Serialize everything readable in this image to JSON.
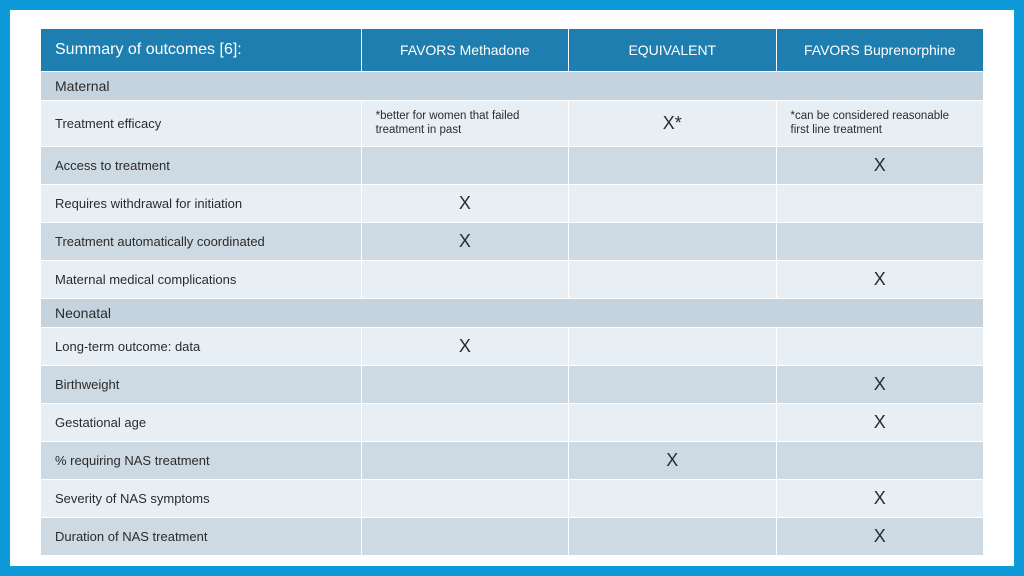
{
  "colors": {
    "page_border": "#0d9ad8",
    "stage_bg": "#ffffff",
    "header_bg": "#1e7eb0",
    "header_text": "#ffffff",
    "section_bg": "#c4d3dd",
    "row_odd_bg": "#e8eff4",
    "row_even_bg": "#cedae3",
    "cell_border": "#ffffff",
    "body_text": "#2b2b2b"
  },
  "table": {
    "columns": {
      "title": "Summary of outcomes [6]:",
      "col1": "FAVORS Methadone",
      "col2": "EQUIVALENT",
      "col3": "FAVORS Buprenorphine"
    },
    "sections": [
      {
        "label": "Maternal",
        "rows": [
          {
            "label": "Treatment efficacy",
            "c1": {
              "type": "note",
              "text": "*better for women that failed treatment in past"
            },
            "c2": {
              "type": "mark",
              "text": "X*"
            },
            "c3": {
              "type": "note",
              "text": "*can be considered reasonable first line treatment"
            }
          },
          {
            "label": "Access to treatment",
            "c1": null,
            "c2": null,
            "c3": {
              "type": "mark",
              "text": "X"
            }
          },
          {
            "label": "Requires withdrawal for initiation",
            "c1": {
              "type": "mark",
              "text": "X"
            },
            "c2": null,
            "c3": null
          },
          {
            "label": "Treatment automatically coordinated",
            "c1": {
              "type": "mark",
              "text": "X"
            },
            "c2": null,
            "c3": null
          },
          {
            "label": "Maternal medical complications",
            "c1": null,
            "c2": null,
            "c3": {
              "type": "mark",
              "text": "X"
            }
          }
        ]
      },
      {
        "label": "Neonatal",
        "rows": [
          {
            "label": "Long-term outcome: data",
            "c1": {
              "type": "mark",
              "text": "X"
            },
            "c2": null,
            "c3": null
          },
          {
            "label": "Birthweight",
            "c1": null,
            "c2": null,
            "c3": {
              "type": "mark",
              "text": "X"
            }
          },
          {
            "label": "Gestational age",
            "c1": null,
            "c2": null,
            "c3": {
              "type": "mark",
              "text": "X"
            }
          },
          {
            "label": "% requiring NAS treatment",
            "c1": null,
            "c2": {
              "type": "mark",
              "text": "X"
            },
            "c3": null
          },
          {
            "label": "Severity of NAS symptoms",
            "c1": null,
            "c2": null,
            "c3": {
              "type": "mark",
              "text": "X"
            }
          },
          {
            "label": "Duration of NAS treatment",
            "c1": null,
            "c2": null,
            "c3": {
              "type": "mark",
              "text": "X"
            }
          }
        ]
      }
    ]
  }
}
